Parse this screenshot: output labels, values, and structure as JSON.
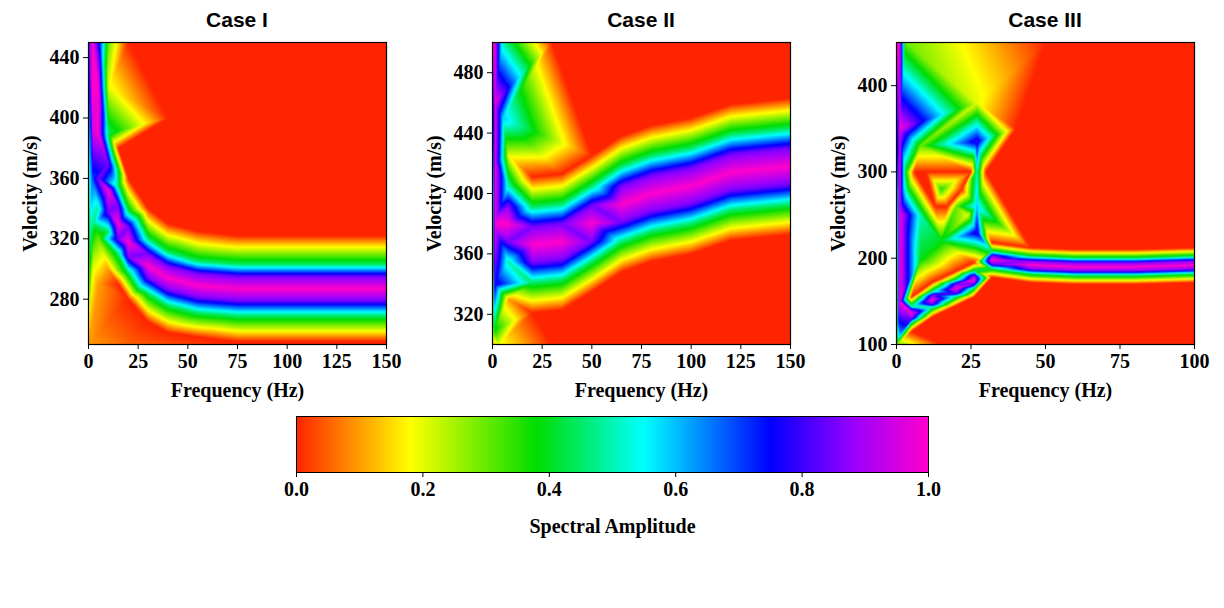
{
  "chart_data": [
    {
      "type": "heatmap",
      "title": "Case I",
      "x_label": "Frequency (Hz)",
      "y_label": "Velocity (m/s)",
      "xlim": [
        0,
        150
      ],
      "xticks": [
        0,
        25,
        50,
        75,
        100,
        125,
        150
      ],
      "ylim": [
        250,
        450
      ],
      "yticks": [
        280,
        320,
        360,
        400,
        440
      ],
      "cells": [
        [
          0,
          250,
          0.1
        ],
        [
          150,
          250,
          0
        ],
        [
          0,
          450,
          0.8
        ],
        [
          150,
          450,
          0
        ],
        [
          75,
          450,
          0
        ],
        [
          75,
          250,
          0
        ],
        [
          20,
          450,
          0
        ],
        [
          20,
          250,
          0.05
        ],
        [
          40,
          400,
          0
        ],
        [
          100,
          380,
          0
        ],
        [
          100,
          420,
          0
        ],
        [
          130,
          350,
          0
        ],
        [
          2,
          450,
          1
        ],
        [
          2,
          420,
          1
        ],
        [
          2,
          390,
          0.95
        ],
        [
          2,
          360,
          0.7
        ],
        [
          2,
          330,
          0.45
        ],
        [
          2,
          300,
          0.2
        ],
        [
          10,
          450,
          0.3
        ],
        [
          6,
          450,
          0.7
        ],
        [
          5,
          420,
          1
        ],
        [
          5,
          390,
          1
        ],
        [
          5,
          360,
          0.85
        ],
        [
          5,
          340,
          0.5
        ],
        [
          5,
          320,
          0.3
        ],
        [
          5,
          290,
          0.1
        ],
        [
          10,
          420,
          0.2
        ],
        [
          10,
          390,
          0.45
        ],
        [
          10,
          370,
          0.85
        ],
        [
          10,
          352,
          1
        ],
        [
          10,
          338,
          0.85
        ],
        [
          10,
          325,
          0.45
        ],
        [
          10,
          300,
          0.1
        ],
        [
          15,
          380,
          0
        ],
        [
          15,
          355,
          0.45
        ],
        [
          15,
          342,
          0.85
        ],
        [
          15,
          330,
          1
        ],
        [
          15,
          320,
          0.85
        ],
        [
          15,
          310,
          0.45
        ],
        [
          15,
          290,
          0
        ],
        [
          20,
          360,
          0
        ],
        [
          20,
          338,
          0.45
        ],
        [
          20,
          328,
          0.85
        ],
        [
          20,
          318,
          1
        ],
        [
          20,
          308,
          0.85
        ],
        [
          20,
          298,
          0.45
        ],
        [
          20,
          280,
          0
        ],
        [
          30,
          340,
          0
        ],
        [
          30,
          320,
          0.45
        ],
        [
          30,
          310,
          0.85
        ],
        [
          30,
          302,
          1
        ],
        [
          30,
          294,
          0.85
        ],
        [
          30,
          284,
          0.45
        ],
        [
          30,
          265,
          0
        ],
        [
          40,
          330,
          0
        ],
        [
          40,
          311,
          0.45
        ],
        [
          40,
          302,
          0.85
        ],
        [
          40,
          294,
          1
        ],
        [
          40,
          286,
          0.85
        ],
        [
          40,
          276,
          0.45
        ],
        [
          40,
          258,
          0
        ],
        [
          55,
          325,
          0
        ],
        [
          55,
          305,
          0.45
        ],
        [
          55,
          297,
          0.85
        ],
        [
          55,
          289,
          1
        ],
        [
          55,
          281,
          0.85
        ],
        [
          55,
          271,
          0.45
        ],
        [
          55,
          255,
          0
        ],
        [
          75,
          322,
          0
        ],
        [
          75,
          303,
          0.45
        ],
        [
          75,
          295,
          0.85
        ],
        [
          75,
          287,
          1
        ],
        [
          75,
          279,
          0.85
        ],
        [
          75,
          269,
          0.45
        ],
        [
          75,
          252,
          0
        ],
        [
          100,
          322,
          0
        ],
        [
          100,
          303,
          0.45
        ],
        [
          100,
          295,
          0.85
        ],
        [
          100,
          287,
          1
        ],
        [
          100,
          279,
          0.85
        ],
        [
          100,
          269,
          0.45
        ],
        [
          100,
          252,
          0
        ],
        [
          125,
          322,
          0
        ],
        [
          125,
          303,
          0.45
        ],
        [
          125,
          295,
          0.85
        ],
        [
          125,
          287,
          1
        ],
        [
          125,
          279,
          0.85
        ],
        [
          125,
          269,
          0.45
        ],
        [
          125,
          252,
          0
        ],
        [
          150,
          322,
          0
        ],
        [
          150,
          303,
          0.45
        ],
        [
          150,
          295,
          0.85
        ],
        [
          150,
          287,
          1
        ],
        [
          150,
          279,
          0.85
        ],
        [
          150,
          269,
          0.45
        ],
        [
          150,
          252,
          0
        ]
      ]
    },
    {
      "type": "heatmap",
      "title": "Case II",
      "x_label": "Frequency (Hz)",
      "y_label": "Velocity (m/s)",
      "xlim": [
        0,
        150
      ],
      "xticks": [
        0,
        25,
        50,
        75,
        100,
        125,
        150
      ],
      "ylim": [
        300,
        500
      ],
      "yticks": [
        320,
        360,
        400,
        440,
        480
      ],
      "cells": [
        [
          0,
          300,
          0.1
        ],
        [
          150,
          300,
          0
        ],
        [
          150,
          500,
          0
        ],
        [
          75,
          500,
          0
        ],
        [
          75,
          300,
          0
        ],
        [
          30,
          500,
          0
        ],
        [
          30,
          300,
          0
        ],
        [
          110,
          490,
          0
        ],
        [
          110,
          320,
          0
        ],
        [
          1,
          500,
          1
        ],
        [
          1,
          460,
          1
        ],
        [
          1,
          420,
          1
        ],
        [
          1,
          380,
          1
        ],
        [
          1,
          340,
          0.8
        ],
        [
          1,
          310,
          0.4
        ],
        [
          5,
          500,
          0.5
        ],
        [
          5,
          450,
          0.6
        ],
        [
          3,
          300,
          0.2
        ],
        [
          8,
          425,
          0.2
        ],
        [
          8,
          405,
          0.5
        ],
        [
          8,
          392,
          0.85
        ],
        [
          8,
          380,
          1
        ],
        [
          8,
          368,
          0.85
        ],
        [
          8,
          355,
          0.5
        ],
        [
          8,
          330,
          0.1
        ],
        [
          20,
          411,
          0
        ],
        [
          20,
          391,
          0.45
        ],
        [
          20,
          378,
          0.85
        ],
        [
          20,
          366,
          1
        ],
        [
          20,
          354,
          0.85
        ],
        [
          20,
          341,
          0.45
        ],
        [
          20,
          321,
          0
        ],
        [
          35,
          413,
          0
        ],
        [
          35,
          393,
          0.45
        ],
        [
          35,
          380,
          0.85
        ],
        [
          35,
          368,
          1
        ],
        [
          35,
          356,
          0.85
        ],
        [
          35,
          343,
          0.45
        ],
        [
          35,
          323,
          0
        ],
        [
          50,
          425,
          0
        ],
        [
          50,
          405,
          0.45
        ],
        [
          50,
          392,
          0.85
        ],
        [
          50,
          380,
          1
        ],
        [
          50,
          368,
          0.85
        ],
        [
          50,
          355,
          0.45
        ],
        [
          50,
          335,
          0
        ],
        [
          65,
          438,
          0
        ],
        [
          65,
          418,
          0.45
        ],
        [
          65,
          405,
          0.85
        ],
        [
          65,
          393,
          1
        ],
        [
          65,
          381,
          0.85
        ],
        [
          65,
          368,
          0.45
        ],
        [
          65,
          348,
          0
        ],
        [
          80,
          445,
          0
        ],
        [
          80,
          425,
          0.45
        ],
        [
          80,
          412,
          0.85
        ],
        [
          80,
          400,
          1
        ],
        [
          80,
          388,
          0.85
        ],
        [
          80,
          375,
          0.45
        ],
        [
          80,
          355,
          0
        ],
        [
          100,
          450,
          0
        ],
        [
          100,
          430,
          0.45
        ],
        [
          100,
          417,
          0.85
        ],
        [
          100,
          405,
          1
        ],
        [
          100,
          393,
          0.85
        ],
        [
          100,
          380,
          0.45
        ],
        [
          100,
          360,
          0
        ],
        [
          120,
          459,
          0
        ],
        [
          120,
          439,
          0.45
        ],
        [
          120,
          426,
          0.85
        ],
        [
          120,
          414,
          1
        ],
        [
          120,
          402,
          0.85
        ],
        [
          120,
          389,
          0.45
        ],
        [
          120,
          369,
          0
        ],
        [
          150,
          463,
          0
        ],
        [
          150,
          443,
          0.45
        ],
        [
          150,
          430,
          0.85
        ],
        [
          150,
          418,
          1
        ],
        [
          150,
          406,
          0.85
        ],
        [
          150,
          393,
          0.45
        ],
        [
          150,
          373,
          0
        ]
      ]
    },
    {
      "type": "heatmap",
      "title": "Case III",
      "x_label": "Frequency (Hz)",
      "y_label": "Velocity (m/s)",
      "xlim": [
        0,
        100
      ],
      "xticks": [
        0,
        25,
        50,
        75,
        100
      ],
      "ylim": [
        100,
        450
      ],
      "yticks": [
        100,
        200,
        300,
        400
      ],
      "cells": [
        [
          0,
          100,
          0.3
        ],
        [
          100,
          100,
          0
        ],
        [
          100,
          450,
          0
        ],
        [
          50,
          450,
          0
        ],
        [
          50,
          100,
          0
        ],
        [
          15,
          100,
          0
        ],
        [
          60,
          300,
          0
        ],
        [
          40,
          350,
          0
        ],
        [
          1,
          450,
          1
        ],
        [
          1,
          350,
          1
        ],
        [
          1,
          250,
          1
        ],
        [
          1,
          150,
          1
        ],
        [
          1,
          110,
          0.6
        ],
        [
          3,
          450,
          0.3
        ],
        [
          3,
          300,
          0.4
        ],
        [
          8,
          330,
          0.3
        ],
        [
          8,
          250,
          0.5
        ],
        [
          8,
          200,
          0.4
        ],
        [
          6,
          300,
          0
        ],
        [
          10,
          300,
          0
        ],
        [
          15,
          280,
          0.35
        ],
        [
          15,
          220,
          0.4
        ],
        [
          13,
          260,
          0
        ],
        [
          17,
          260,
          0
        ],
        [
          20,
          260,
          0.3
        ],
        [
          22,
          280,
          0
        ],
        [
          27,
          380,
          0.2
        ],
        [
          27,
          335,
          0.8
        ],
        [
          27,
          300,
          0.5
        ],
        [
          27,
          260,
          0.6
        ],
        [
          27,
          230,
          0.8
        ],
        [
          25,
          300,
          0
        ],
        [
          30,
          300,
          0
        ],
        [
          24,
          250,
          0.2
        ],
        [
          5,
          115,
          0
        ],
        [
          5,
          125,
          0.45
        ],
        [
          5,
          130,
          0.85
        ],
        [
          5,
          135,
          1
        ],
        [
          5,
          140,
          0.85
        ],
        [
          5,
          145,
          0.45
        ],
        [
          5,
          155,
          0
        ],
        [
          12,
          132,
          0
        ],
        [
          12,
          142,
          0.45
        ],
        [
          12,
          147,
          0.85
        ],
        [
          12,
          152,
          1
        ],
        [
          12,
          157,
          0.85
        ],
        [
          12,
          162,
          0.45
        ],
        [
          12,
          172,
          0
        ],
        [
          20,
          145,
          0
        ],
        [
          20,
          155,
          0.45
        ],
        [
          20,
          160,
          0.85
        ],
        [
          20,
          165,
          1
        ],
        [
          20,
          170,
          0.85
        ],
        [
          20,
          175,
          0.45
        ],
        [
          20,
          185,
          0
        ],
        [
          26,
          155,
          0
        ],
        [
          26,
          165,
          0.45
        ],
        [
          26,
          170,
          0.85
        ],
        [
          26,
          175,
          1
        ],
        [
          26,
          180,
          0.85
        ],
        [
          26,
          185,
          0.45
        ],
        [
          26,
          195,
          0
        ],
        [
          32,
          178,
          0
        ],
        [
          32,
          188,
          0.45
        ],
        [
          32,
          193,
          0.85
        ],
        [
          32,
          198,
          1
        ],
        [
          32,
          203,
          0.85
        ],
        [
          32,
          208,
          0.45
        ],
        [
          32,
          218,
          0
        ],
        [
          45,
          172,
          0
        ],
        [
          45,
          182,
          0.45
        ],
        [
          45,
          187,
          0.85
        ],
        [
          45,
          192,
          1
        ],
        [
          45,
          197,
          0.85
        ],
        [
          45,
          202,
          0.45
        ],
        [
          45,
          212,
          0
        ],
        [
          60,
          170,
          0
        ],
        [
          60,
          180,
          0.45
        ],
        [
          60,
          185,
          0.85
        ],
        [
          60,
          190,
          1
        ],
        [
          60,
          195,
          0.85
        ],
        [
          60,
          200,
          0.45
        ],
        [
          60,
          210,
          0
        ],
        [
          80,
          170,
          0
        ],
        [
          80,
          180,
          0.45
        ],
        [
          80,
          185,
          0.85
        ],
        [
          80,
          190,
          1
        ],
        [
          80,
          195,
          0.85
        ],
        [
          80,
          200,
          0.45
        ],
        [
          80,
          210,
          0
        ],
        [
          100,
          172,
          0
        ],
        [
          100,
          182,
          0.45
        ],
        [
          100,
          187,
          0.85
        ],
        [
          100,
          192,
          1
        ],
        [
          100,
          197,
          0.85
        ],
        [
          100,
          202,
          0.45
        ],
        [
          100,
          212,
          0
        ]
      ]
    }
  ],
  "color_bar": {
    "label": "Spectral Amplitude",
    "range": [
      0,
      1
    ],
    "ticks": [
      {
        "value": 0,
        "label": "0.0"
      },
      {
        "value": 0.2,
        "label": "0.2"
      },
      {
        "value": 0.4,
        "label": "0.4"
      },
      {
        "value": 0.6,
        "label": "0.6"
      },
      {
        "value": 0.8,
        "label": "0.8"
      },
      {
        "value": 1,
        "label": "1.0"
      }
    ]
  }
}
